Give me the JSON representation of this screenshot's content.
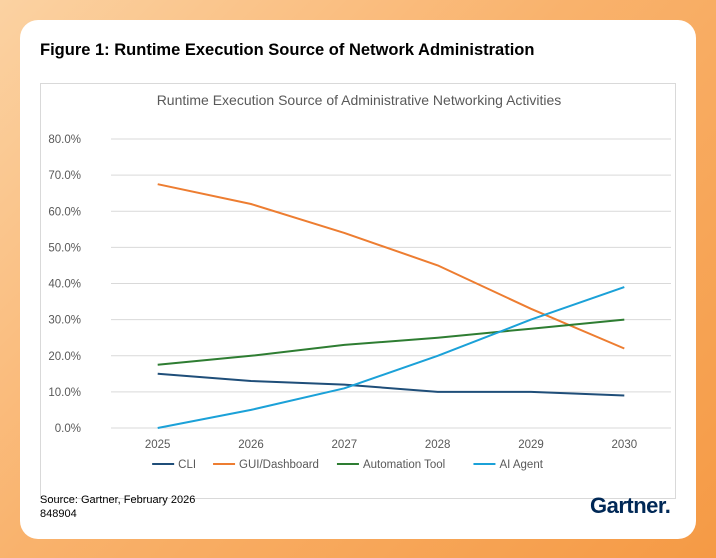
{
  "figure_title": "Figure 1: Runtime Execution Source of Network Administration",
  "source": "Source: Gartner, February 2026",
  "doc_id": "848904",
  "logo": "Gartner",
  "logo_mark": ".",
  "colors": {
    "background_gradient_start": "#fbd2a2",
    "background_gradient_end": "#f59a45",
    "gridline": "#d9d9d9",
    "logo": "#002856"
  },
  "chart_data": {
    "type": "line",
    "title": "Runtime Execution Source of Administrative Networking Activities",
    "xlabel": "",
    "ylabel": "",
    "categories": [
      "2025",
      "2026",
      "2027",
      "2028",
      "2029",
      "2030"
    ],
    "yticks": [
      "0.0%",
      "10.0%",
      "20.0%",
      "30.0%",
      "40.0%",
      "50.0%",
      "60.0%",
      "70.0%",
      "80.0%"
    ],
    "ylim": [
      0,
      80
    ],
    "grid": true,
    "legend_position": "bottom",
    "series": [
      {
        "name": "CLI",
        "color": "#1f4e79",
        "values": [
          15,
          13,
          12,
          10,
          10,
          9
        ]
      },
      {
        "name": "GUI/Dashboard",
        "color": "#ed7d31",
        "values": [
          67.5,
          62,
          54,
          45,
          33,
          22
        ]
      },
      {
        "name": "Automation Tool",
        "color": "#2e7d32",
        "values": [
          17.5,
          20,
          23,
          25,
          27.5,
          30
        ]
      },
      {
        "name": "AI Agent",
        "color": "#1ba1d8",
        "values": [
          0,
          5,
          11,
          20,
          30,
          39
        ]
      }
    ]
  }
}
